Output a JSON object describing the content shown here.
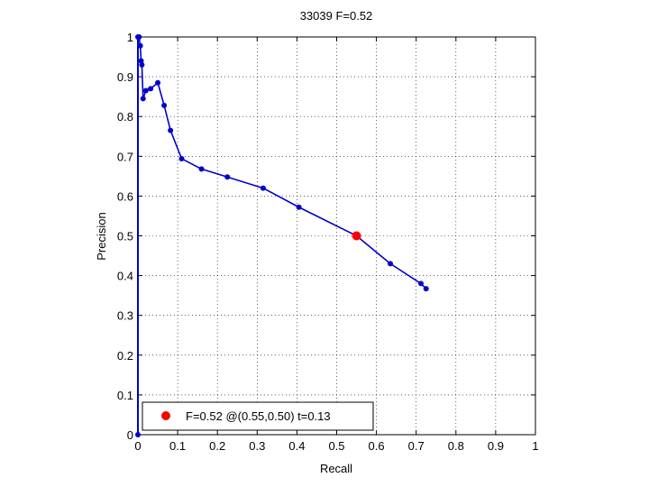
{
  "chart_data": {
    "type": "line",
    "title": "33039 F=0.52",
    "xlabel": "Recall",
    "ylabel": "Precision",
    "xlim": [
      0,
      1
    ],
    "ylim": [
      0,
      1
    ],
    "grid": true,
    "xticks": [
      "0",
      "0.1",
      "0.2",
      "0.3",
      "0.4",
      "0.5",
      "0.6",
      "0.7",
      "0.8",
      "0.9",
      "1"
    ],
    "yticks": [
      "0",
      "0.1",
      "0.2",
      "0.3",
      "0.4",
      "0.5",
      "0.6",
      "0.7",
      "0.8",
      "0.9",
      "1"
    ],
    "series": [
      {
        "color": "#0000cc",
        "x": [
          0.0,
          0.003,
          0.006,
          0.008,
          0.01,
          0.013,
          0.02,
          0.032,
          0.05,
          0.066,
          0.082,
          0.11,
          0.16,
          0.225,
          0.315,
          0.405,
          0.55,
          0.635,
          0.712,
          0.725
        ],
        "y": [
          1.0,
          1.0,
          0.978,
          0.94,
          0.93,
          0.845,
          0.865,
          0.87,
          0.885,
          0.828,
          0.765,
          0.694,
          0.668,
          0.648,
          0.62,
          0.572,
          0.5,
          0.43,
          0.38,
          0.367
        ]
      }
    ],
    "highlight_point": {
      "x": 0.55,
      "y": 0.5,
      "color": "#ff0000"
    },
    "legend": {
      "label": "F=0.52 @(0.55,0.50) t=0.13",
      "placement": "bottom-left"
    }
  }
}
